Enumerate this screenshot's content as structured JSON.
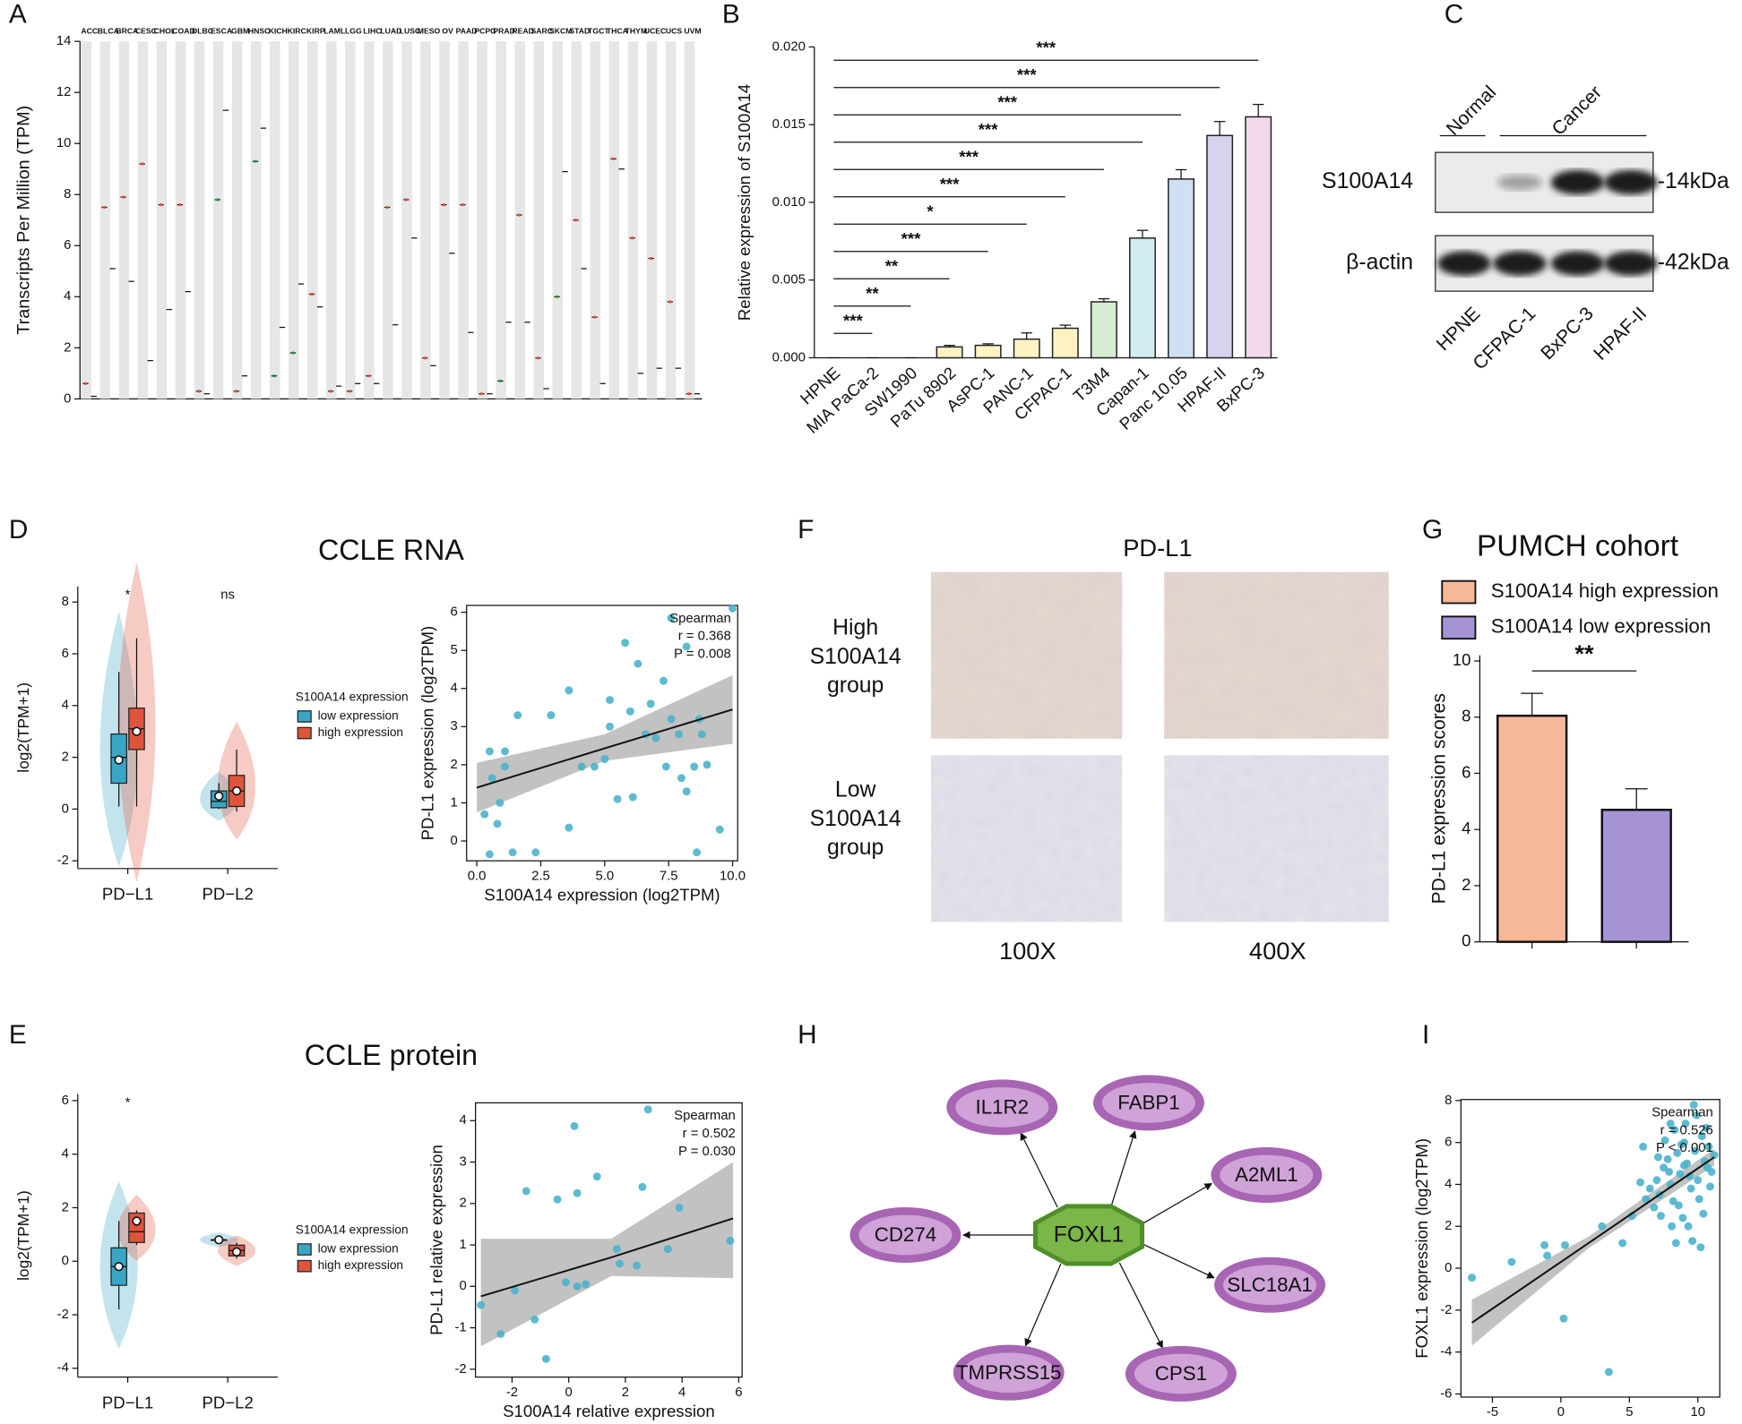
{
  "panel_labels": [
    "A",
    "B",
    "C",
    "D",
    "E",
    "F",
    "G",
    "H",
    "I"
  ],
  "chart_data": [
    {
      "type": "median-strip",
      "ylabel": "Transcripts Per Million (TPM)",
      "categories": [
        "ACC",
        "BLCA",
        "BRCA",
        "CESC",
        "CHOL",
        "COAD",
        "DLBC",
        "ESCA",
        "GBM",
        "HNSC",
        "KICH",
        "KIRC",
        "KIRP",
        "LAML",
        "LGG",
        "LIHC",
        "LUAD",
        "LUSC",
        "MESO",
        "OV",
        "PAAD",
        "PCPG",
        "PRAD",
        "READ",
        "SARC",
        "SKCM",
        "STAD",
        "TGCT",
        "THCA",
        "THYM",
        "UCEC",
        "UCS",
        "UVM"
      ],
      "category_colors": [
        "#000000",
        "#e8473f",
        "#e8473f",
        "#e8473f",
        "#000000",
        "#e8473f",
        "#000000",
        "#1a9c3a",
        "#000000",
        "#1a9c3a",
        "#1a9c3a",
        "#1a9c3a",
        "#000000",
        "#000000",
        "#000000",
        "#000000",
        "#e8473f",
        "#e8473f",
        "#000000",
        "#e8473f",
        "#e8473f",
        "#000000",
        "#1a9c3a",
        "#e8473f",
        "#000000",
        "#1a9c3a",
        "#e8473f",
        "#e8473f",
        "#000000",
        "#e8473f",
        "#e8473f",
        "#e8473f",
        "#000000"
      ],
      "tumor_medians": [
        0.6,
        7.5,
        7.9,
        9.2,
        7.6,
        7.6,
        0.3,
        7.8,
        0.3,
        9.3,
        0.9,
        1.8,
        4.1,
        0.3,
        0.3,
        0.9,
        7.5,
        7.8,
        1.6,
        7.6,
        7.6,
        0.2,
        0.7,
        7.2,
        1.6,
        4.0,
        7.0,
        3.2,
        9.4,
        6.3,
        5.5,
        3.8,
        0.2
      ],
      "normal_medians": [
        0.1,
        5.1,
        4.6,
        1.5,
        3.5,
        4.2,
        0.2,
        11.3,
        0.9,
        10.6,
        2.8,
        4.5,
        3.6,
        0.5,
        0.6,
        0.6,
        2.9,
        6.3,
        1.3,
        5.7,
        2.6,
        0.2,
        3.0,
        3.0,
        0.4,
        8.9,
        5.1,
        0.6,
        9.0,
        1.0,
        1.2,
        1.2,
        0.2
      ],
      "ylim": [
        0,
        14
      ],
      "yticks": [
        0,
        2,
        4,
        6,
        8,
        10,
        12,
        14
      ]
    },
    {
      "type": "bar",
      "ylabel": "Relative expression of S100A14",
      "categories": [
        "HPNE",
        "MIA PaCa-2",
        "SW1990",
        "PaTu 8902",
        "AsPC-1",
        "PANC-1",
        "CFPAC-1",
        "T3M4",
        "Capan-1",
        "Panc 10.05",
        "HPAF-II",
        "BxPC-3"
      ],
      "values": [
        0,
        0,
        0,
        0.0007,
        0.0008,
        0.0012,
        0.0019,
        0.0036,
        0.0077,
        0.0115,
        0.0143,
        0.0155
      ],
      "errors": [
        0,
        0,
        0,
        0.0001,
        0.0001,
        0.0004,
        0.0002,
        0.0002,
        0.0005,
        0.0006,
        0.0009,
        0.0008
      ],
      "colors": [
        "#fff3c4",
        "#fff3c4",
        "#fff3c4",
        "#fff3c4",
        "#fff3c4",
        "#fff3c4",
        "#fff3c4",
        "#d8ecd1",
        "#d3eef0",
        "#cfe0f3",
        "#d6d3ef",
        "#f2daea"
      ],
      "significance": [
        null,
        "***",
        "**",
        "**",
        "***",
        "*",
        "***",
        "***",
        "***",
        "***",
        "***",
        "***"
      ],
      "ylim": [
        0,
        0.02
      ],
      "yticks": [
        {
          "value": 0,
          "label": "0.000"
        },
        0.005,
        {
          "value": 0.01,
          "label": "0.010"
        },
        0.015,
        {
          "value": 0.02,
          "label": "0.020"
        }
      ]
    },
    {
      "type": "box",
      "title": "CCLE RNA",
      "ylabel": "log2(TPM+1)",
      "categories": [
        "PD−L1",
        "PD−L2"
      ],
      "legend_title": "S100A14 expression",
      "significance": [
        "*",
        "ns"
      ],
      "series": [
        {
          "name": "low expression",
          "color": "#3aa6c4",
          "min": [
            0.1,
            0
          ],
          "q1": [
            1.0,
            0.05
          ],
          "median": [
            2.0,
            0.3
          ],
          "q3": [
            2.9,
            0.7
          ],
          "max": [
            5.3,
            1.0
          ],
          "mean": [
            1.9,
            0.5
          ]
        },
        {
          "name": "high expression",
          "color": "#e0533c",
          "min": [
            0.1,
            -0.1
          ],
          "q1": [
            2.3,
            0.1
          ],
          "median": [
            3.1,
            0.7
          ],
          "q3": [
            3.9,
            1.3
          ],
          "max": [
            6.6,
            2.3
          ],
          "mean": [
            3.0,
            0.7
          ]
        }
      ],
      "ylim": [
        -2.3,
        8.6
      ],
      "yticks": [
        -2,
        0,
        2,
        4,
        6,
        8
      ]
    },
    {
      "type": "scatter",
      "xlabel": "S100A14 expression (log2TPM)",
      "ylabel": "PD-L1 expression (log2TPM)",
      "color": "#4bb3cc",
      "stats": [
        "Spearman",
        "r = 0.368",
        "P = 0.008"
      ],
      "x": [
        10.0,
        7.6,
        8.2,
        5.8,
        6.3,
        3.6,
        7.3,
        1.6,
        2.9,
        5.2,
        6.0,
        6.8,
        8.7,
        5.2,
        7.6,
        6.6,
        7.0,
        7.9,
        8.8,
        9.0,
        8.5,
        8.0,
        8.2,
        7.4,
        6.1,
        5.5,
        5.0,
        4.6,
        4.1,
        3.6,
        2.3,
        9.5,
        8.6,
        0.5,
        1.1,
        1.1,
        0.6,
        0.9,
        0.3,
        0.8,
        0.5,
        1.4
      ],
      "values": [
        6.1,
        5.85,
        5.1,
        5.2,
        4.65,
        3.95,
        4.2,
        3.3,
        3.3,
        3.7,
        3.4,
        3.6,
        3.2,
        3.0,
        3.2,
        2.8,
        2.7,
        2.8,
        2.8,
        2.0,
        1.95,
        1.65,
        1.3,
        1.95,
        1.15,
        1.1,
        2.15,
        1.95,
        1.95,
        0.35,
        -0.3,
        0.3,
        -0.3,
        2.35,
        2.35,
        1.95,
        1.65,
        1.0,
        0.7,
        0.45,
        -0.35,
        -0.3
      ],
      "fit_x": [
        0,
        5,
        10
      ],
      "fit_y": [
        1.4,
        2.43,
        3.45
      ],
      "ci_low": [
        0.75,
        2.1,
        2.55
      ],
      "ci_high": [
        2.05,
        2.8,
        4.35
      ],
      "xlim": [
        -0.4,
        10.2
      ],
      "xticks": [
        {
          "value": 0,
          "label": "0.0"
        },
        2.5,
        {
          "value": 5,
          "label": "5.0"
        },
        7.5,
        {
          "value": 10,
          "label": "10.0"
        }
      ],
      "ylim": [
        -0.52,
        6.18
      ],
      "yticks": [
        0,
        1,
        2,
        3,
        4,
        5,
        6
      ]
    },
    {
      "type": "box",
      "title": "CCLE protein",
      "ylabel": "log2(TPM+1)",
      "categories": [
        "PD−L1",
        "PD−L2"
      ],
      "legend_title": "S100A14 expression",
      "significance": [
        "*",
        null
      ],
      "series": [
        {
          "name": "low expression",
          "color": "#3aa6c4",
          "min": [
            -1.8,
            0.8
          ],
          "q1": [
            -0.9,
            0.8
          ],
          "median": [
            -0.2,
            0.8
          ],
          "q3": [
            0.5,
            0.8
          ],
          "max": [
            1.5,
            0.8
          ],
          "mean": [
            -0.2,
            0.8
          ]
        },
        {
          "name": "high expression",
          "color": "#e0533c",
          "min": [
            0.6,
            0.1
          ],
          "q1": [
            0.7,
            0.2
          ],
          "median": [
            1.1,
            0.4
          ],
          "q3": [
            1.8,
            0.6
          ],
          "max": [
            1.9,
            0.7
          ],
          "mean": [
            1.5,
            0.35
          ]
        }
      ],
      "ylim": [
        -4.33,
        6.25
      ],
      "yticks": [
        -4,
        -2,
        0,
        2,
        4,
        6
      ]
    },
    {
      "type": "scatter",
      "xlabel": "S100A14 relative expression",
      "ylabel": "PD-L1 relative expression",
      "color": "#4bb3cc",
      "stats": [
        "Spearman",
        "r = 0.502",
        "P = 0.030"
      ],
      "x": [
        2.8,
        0.2,
        -1.5,
        -0.4,
        0.3,
        1.0,
        2.6,
        3.9,
        5.7,
        3.5,
        2.4,
        1.8,
        0.6,
        -0.1,
        0.3,
        -1.9,
        -3.1,
        -1.2,
        -2.4,
        -0.8,
        1.7
      ],
      "values": [
        4.27,
        3.87,
        2.3,
        2.1,
        2.25,
        2.65,
        2.4,
        1.9,
        1.1,
        0.9,
        0.5,
        0.55,
        0.05,
        0.1,
        0.0,
        -0.1,
        -0.45,
        -0.8,
        -1.15,
        -1.75,
        0.9
      ],
      "fit_x": [
        -3.1,
        1.5,
        5.8
      ],
      "fit_y": [
        -0.24,
        0.7,
        1.64
      ],
      "ci_low": [
        -1.45,
        0.25,
        0.2
      ],
      "ci_high": [
        1.15,
        1.15,
        3.0
      ],
      "xlim": [
        -3.29,
        6.12
      ],
      "xticks": [
        -2,
        0,
        2,
        4,
        6
      ],
      "ylim": [
        -2.19,
        4.43
      ],
      "yticks": [
        -2,
        -1,
        0,
        1,
        2,
        3,
        4
      ]
    },
    {
      "type": "bar-legend",
      "title": "PUMCH cohort",
      "ylabel": "PD-L1 expression scores",
      "categories": [
        null,
        null
      ],
      "significance": "**",
      "series": [
        {
          "name": "S100A14 high expression",
          "color": "#f7b89a",
          "values": [
            8.05,
            null
          ],
          "errors": [
            0.8,
            null
          ]
        },
        {
          "name": "S100A14 low expression",
          "color": "#a593d3",
          "values": [
            null,
            4.7
          ],
          "errors": [
            null,
            0.75
          ]
        }
      ],
      "ylim": [
        0,
        10.2
      ],
      "yticks": [
        0,
        2,
        4,
        6,
        8,
        10
      ]
    },
    {
      "type": "scatter",
      "xlabel": "S100A14 expression (log2TPM)",
      "ylabel": "FOXL1 expression (log2TPM)",
      "color": "#4bb3cc",
      "stats": [
        "Spearman",
        "r = 0.526",
        "P < 0.001"
      ],
      "x": [
        6.5,
        7,
        7.2,
        7.5,
        7.8,
        8,
        8.2,
        8.5,
        8.7,
        9,
        9.2,
        9.5,
        9.8,
        10,
        10.3,
        10.5,
        10.8,
        11,
        7.3,
        8.1,
        8.9,
        9.6,
        10.2,
        6.8,
        7.6,
        8.3,
        9.1,
        9.9,
        10.6,
        8.6,
        9.4,
        10.1,
        7.9,
        6.2,
        5.8,
        11.2,
        9.7,
        8.8,
        10.9,
        7.1,
        9.3,
        10.4,
        8.4,
        5.2,
        6.0,
        9.0,
        10.7,
        8.0,
        -6.5,
        -3.6,
        -1.2,
        0.3,
        -1.0,
        0.2,
        3.5,
        3.0,
        4.5
      ],
      "values": [
        3.8,
        4.2,
        3.5,
        4.8,
        5.2,
        4,
        3.2,
        5.5,
        4.5,
        6,
        5,
        3.8,
        5.6,
        4.2,
        6.3,
        5.1,
        5.8,
        4.6,
        2.5,
        2.0,
        2.4,
        1.3,
        1.0,
        2.9,
        6.1,
        6.6,
        6.9,
        7.3,
        6.7,
        3.0,
        4.4,
        3.3,
        4.6,
        3.3,
        4.1,
        5.4,
        7.8,
        5.9,
        3.9,
        5.3,
        2.0,
        2.6,
        1.2,
        2.5,
        5.8,
        4.9,
        4.8,
        6.9,
        -0.45,
        0.3,
        1.1,
        1.1,
        0.6,
        -2.4,
        -4.95,
        2.0,
        1.2
      ],
      "fit_x": [
        -6.5,
        2,
        11.2
      ],
      "fit_y": [
        -2.6,
        1.19,
        5.3
      ],
      "ci_low": [
        -3.7,
        0.95,
        4.9
      ],
      "ci_high": [
        -1.5,
        1.5,
        5.7
      ],
      "xlim": [
        -7.3,
        11.6
      ],
      "xticks": [
        -5,
        0,
        5,
        10
      ],
      "ylim": [
        -6.15,
        8.05
      ],
      "yticks": [
        -6,
        -4,
        -2,
        0,
        2,
        4,
        6,
        8
      ]
    }
  ],
  "western_blot": {
    "groups": [
      "Normal",
      "Cancer"
    ],
    "rows": [
      "S100A14",
      "β-actin"
    ],
    "sizes": [
      "-14kDa",
      "-42kDa"
    ],
    "lanes": [
      "HPNE",
      "CFPAC-1",
      "BxPC-3",
      "HPAF-II"
    ]
  },
  "ihc": {
    "title": "PD-L1",
    "rows": [
      [
        "High",
        "S100A14",
        "group"
      ],
      [
        "Low",
        "S100A14",
        "group"
      ]
    ],
    "columns": [
      "100X",
      "400X"
    ]
  },
  "network": {
    "center": "FOXL1",
    "targets": [
      "IL1R2",
      "FABP1",
      "A2ML1",
      "SLC18A1",
      "CPS1",
      "TMPRSS15",
      "CD274"
    ]
  }
}
